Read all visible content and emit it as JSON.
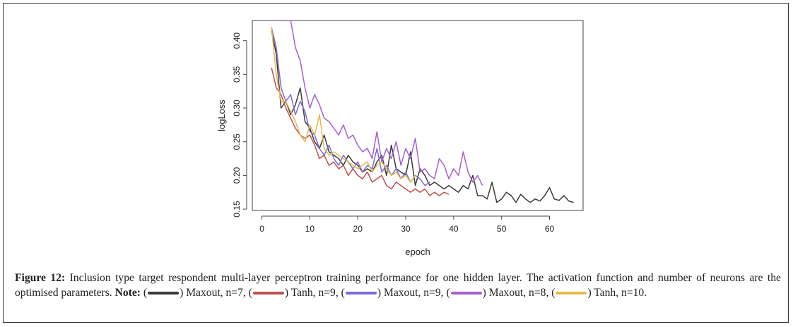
{
  "chart_data": {
    "type": "line",
    "xlabel": "epoch",
    "ylabel": "logLoss",
    "xlim": [
      -2,
      67
    ],
    "ylim": [
      0.148,
      0.43
    ],
    "xticks": [
      0,
      10,
      20,
      30,
      40,
      50,
      60
    ],
    "yticks": [
      0.15,
      0.2,
      0.25,
      0.3,
      0.35,
      0.4
    ],
    "ytick_labels": [
      "0.15",
      "0.20",
      "0.25",
      "0.30",
      "0.35",
      "0.40"
    ],
    "grid": false,
    "series": [
      {
        "name": "Maxout, n=7",
        "color": "#3a3a3a",
        "x": [
          2,
          3,
          4,
          5,
          6,
          7,
          8,
          9,
          10,
          11,
          12,
          13,
          14,
          15,
          16,
          17,
          18,
          19,
          20,
          21,
          22,
          23,
          24,
          25,
          26,
          27,
          28,
          29,
          30,
          31,
          32,
          33,
          34,
          35,
          36,
          37,
          38,
          39,
          40,
          41,
          42,
          43,
          44,
          45,
          46,
          47,
          48,
          49,
          50,
          51,
          52,
          53,
          54,
          55,
          56,
          57,
          58,
          59,
          60,
          61,
          62,
          63,
          64,
          65
        ],
        "values": [
          0.415,
          0.38,
          0.3,
          0.31,
          0.29,
          0.305,
          0.33,
          0.28,
          0.27,
          0.25,
          0.24,
          0.26,
          0.235,
          0.23,
          0.225,
          0.215,
          0.23,
          0.22,
          0.215,
          0.205,
          0.21,
          0.205,
          0.22,
          0.23,
          0.2,
          0.245,
          0.21,
          0.205,
          0.2,
          0.235,
          0.185,
          0.21,
          0.2,
          0.185,
          0.19,
          0.185,
          0.18,
          0.185,
          0.18,
          0.175,
          0.185,
          0.18,
          0.2,
          0.17,
          0.17,
          0.165,
          0.19,
          0.16,
          0.165,
          0.175,
          0.17,
          0.16,
          0.172,
          0.165,
          0.16,
          0.165,
          0.162,
          0.17,
          0.182,
          0.165,
          0.163,
          0.17,
          0.162,
          0.16
        ]
      },
      {
        "name": "Tanh, n=9",
        "color": "#c0504d",
        "x": [
          2,
          3,
          4,
          5,
          6,
          7,
          8,
          9,
          10,
          11,
          12,
          13,
          14,
          15,
          16,
          17,
          18,
          19,
          20,
          21,
          22,
          23,
          24,
          25,
          26,
          27,
          28,
          29,
          30,
          31,
          32,
          33,
          34,
          35,
          36,
          37,
          38,
          39
        ],
        "values": [
          0.36,
          0.33,
          0.32,
          0.3,
          0.285,
          0.27,
          0.26,
          0.255,
          0.26,
          0.245,
          0.225,
          0.23,
          0.215,
          0.22,
          0.21,
          0.215,
          0.2,
          0.21,
          0.2,
          0.195,
          0.205,
          0.19,
          0.195,
          0.2,
          0.185,
          0.18,
          0.19,
          0.185,
          0.18,
          0.175,
          0.18,
          0.175,
          0.18,
          0.17,
          0.175,
          0.17,
          0.175,
          0.172
        ]
      },
      {
        "name": "Maxout, n=9",
        "color": "#7d6bd6",
        "x": [
          2,
          3,
          4,
          5,
          6,
          7,
          8,
          9,
          10,
          11,
          12,
          13,
          14,
          15,
          16,
          17,
          18,
          19,
          20,
          21,
          22,
          23,
          24,
          25,
          26,
          27,
          28,
          29,
          30,
          31,
          32,
          33,
          34,
          35
        ],
        "values": [
          0.42,
          0.39,
          0.33,
          0.31,
          0.32,
          0.29,
          0.31,
          0.295,
          0.265,
          0.26,
          0.24,
          0.23,
          0.245,
          0.225,
          0.215,
          0.23,
          0.22,
          0.21,
          0.22,
          0.205,
          0.215,
          0.21,
          0.24,
          0.205,
          0.215,
          0.2,
          0.21,
          0.195,
          0.205,
          0.19,
          0.2,
          0.195,
          0.185,
          0.19
        ]
      },
      {
        "name": "Maxout, n=8",
        "color": "#a55fd0",
        "x": [
          3,
          4,
          5,
          6,
          7,
          8,
          9,
          10,
          11,
          12,
          13,
          14,
          15,
          16,
          17,
          18,
          19,
          20,
          21,
          22,
          23,
          24,
          25,
          26,
          27,
          28,
          29,
          30,
          31,
          32,
          33,
          34,
          35,
          36,
          37,
          38,
          39,
          40,
          41,
          42,
          43,
          44,
          45,
          46
        ],
        "values": [
          0.43,
          0.43,
          0.43,
          0.43,
          0.39,
          0.37,
          0.33,
          0.3,
          0.32,
          0.305,
          0.285,
          0.28,
          0.27,
          0.26,
          0.275,
          0.255,
          0.26,
          0.245,
          0.235,
          0.24,
          0.225,
          0.265,
          0.22,
          0.24,
          0.225,
          0.25,
          0.215,
          0.24,
          0.225,
          0.255,
          0.205,
          0.21,
          0.2,
          0.195,
          0.225,
          0.215,
          0.195,
          0.21,
          0.2,
          0.235,
          0.205,
          0.19,
          0.2,
          0.185
        ]
      },
      {
        "name": "Tanh, n=10",
        "color": "#e8b84a",
        "x": [
          2,
          3,
          4,
          5,
          6,
          7,
          8,
          9,
          10,
          11,
          12,
          13,
          14,
          15,
          16,
          17,
          18,
          19,
          20,
          21,
          22,
          23,
          24,
          25,
          26,
          27,
          28,
          29,
          30,
          31,
          32
        ],
        "values": [
          0.42,
          0.35,
          0.31,
          0.31,
          0.295,
          0.28,
          0.26,
          0.25,
          0.275,
          0.26,
          0.29,
          0.24,
          0.23,
          0.235,
          0.23,
          0.225,
          0.22,
          0.215,
          0.21,
          0.215,
          0.22,
          0.205,
          0.215,
          0.22,
          0.21,
          0.2,
          0.205,
          0.195,
          0.2,
          0.19,
          0.2
        ]
      }
    ]
  },
  "caption": {
    "figure_label": "Figure 12:",
    "text": " Inclusion type target respondent multi-layer perceptron training performance for one hidden layer. The activation function and number of neurons are the optimised parameters. ",
    "note_label": "Note:",
    "legend": [
      {
        "label": "Maxout, n=7,",
        "color": "#3a3a3a"
      },
      {
        "label": "Tanh, n=9,",
        "color": "#c0504d"
      },
      {
        "label": "Maxout, n=9,",
        "color": "#7d6bd6"
      },
      {
        "label": "Maxout, n=8,",
        "color": "#a55fd0"
      },
      {
        "label": "Tanh, n=10.",
        "color": "#e8b84a"
      }
    ]
  }
}
